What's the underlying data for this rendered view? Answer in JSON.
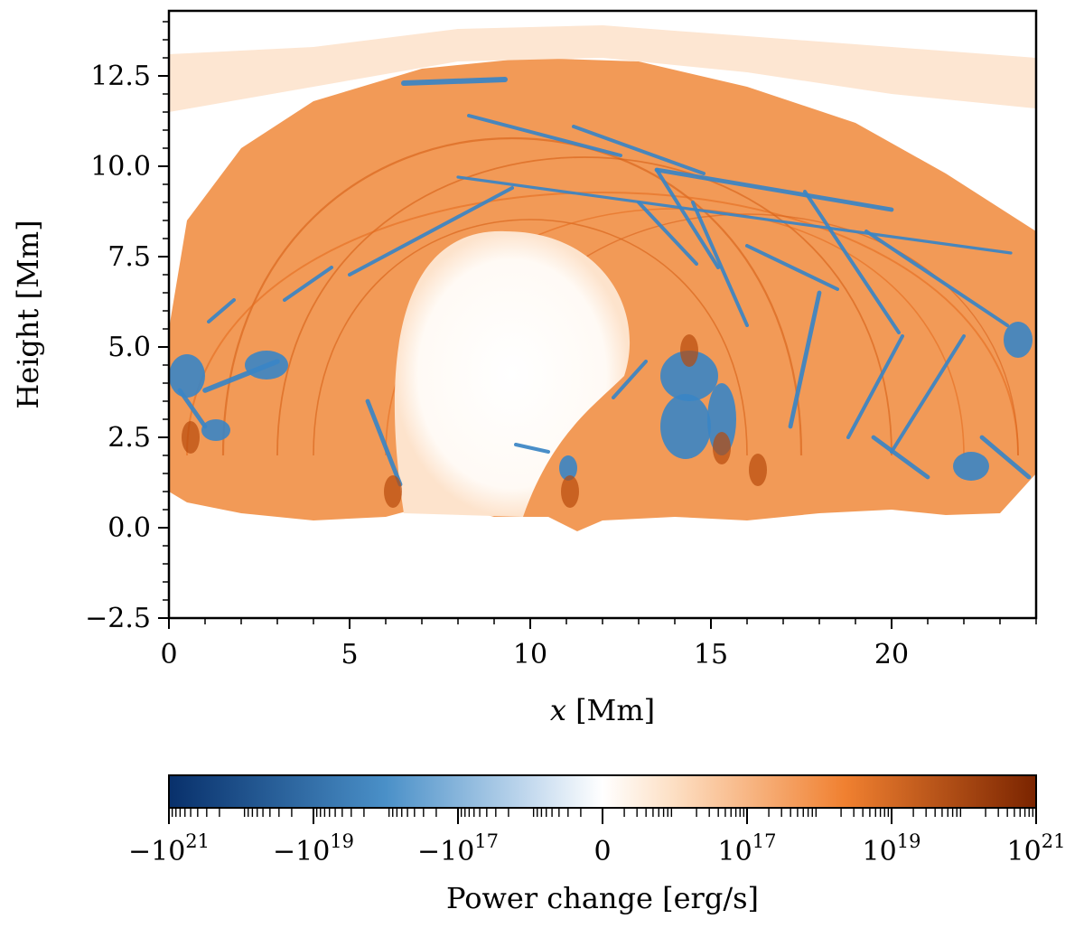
{
  "chart_data": {
    "type": "heatmap",
    "title": "",
    "xlabel_var": "x",
    "xlabel_unit": "[Mm]",
    "ylabel": "Height [Mm]",
    "xlim": [
      0,
      24
    ],
    "ylim": [
      -2.5,
      14.3
    ],
    "x_ticks": [
      0,
      5,
      10,
      15,
      20
    ],
    "x_tick_labels": [
      "0",
      "5",
      "10",
      "15",
      "20"
    ],
    "y_ticks": [
      -2.5,
      0.0,
      2.5,
      5.0,
      7.5,
      10.0,
      12.5
    ],
    "y_tick_labels": [
      "−2.5",
      "0.0",
      "2.5",
      "5.0",
      "7.5",
      "10.0",
      "12.5"
    ],
    "grid": false,
    "colormap": "diverging blue-white-orange (symlog)",
    "colorbar": {
      "label": "Power change [erg/s]",
      "range": [
        -1e+21,
        1e+21
      ],
      "ticks": [
        {
          "value": -1e+21,
          "base": "−10",
          "exp": "21"
        },
        {
          "value": -1e+19,
          "base": "−10",
          "exp": "19"
        },
        {
          "value": -1e+17,
          "base": "−10",
          "exp": "17"
        },
        {
          "value": 0,
          "base": "0",
          "exp": ""
        },
        {
          "value": 1e+17,
          "base": "10",
          "exp": "17"
        },
        {
          "value": 1e+19,
          "base": "10",
          "exp": "19"
        },
        {
          "value": 1e+21,
          "base": "10",
          "exp": "21"
        }
      ],
      "colors": {
        "neg_max": "#08306b",
        "neg_mid": "#4a90c8",
        "neg_low": "#c6dbef",
        "zero": "#ffffff",
        "pos_low": "#fde0c5",
        "pos_mid": "#f08030",
        "pos_max": "#7a2400"
      }
    },
    "features": {
      "loop_color": "#f0883a",
      "loop_color_dark": "#d65f14",
      "negative_color": "#3a85c5",
      "cavity_color": "#ffffff"
    }
  }
}
